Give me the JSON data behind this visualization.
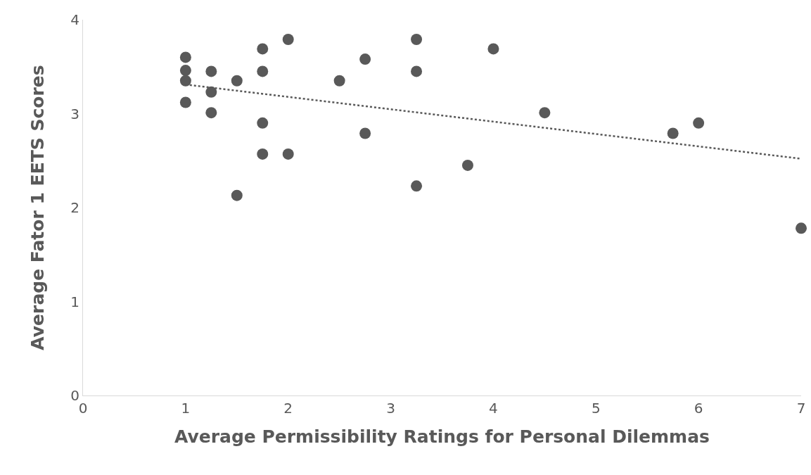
{
  "chart_data": {
    "type": "scatter",
    "xlabel": "Average Permissibility Ratings for Personal Dilemmas",
    "ylabel": "Average Fator 1 EETS Scores",
    "xlim": [
      0,
      7
    ],
    "xticks": [
      0,
      1,
      2,
      3,
      4,
      5,
      6,
      7
    ],
    "ylim": [
      0,
      4
    ],
    "yticks": [
      0,
      1,
      2,
      3,
      4
    ],
    "grid": false,
    "legend": false,
    "marker": "circle",
    "series": [
      {
        "color": "#595959",
        "x": [
          1,
          1,
          1,
          1,
          1.25,
          1.25,
          1.25,
          1.5,
          1.5,
          1.75,
          1.75,
          1.75,
          1.75,
          2,
          2,
          2.5,
          2.75,
          2.75,
          3.25,
          3.25,
          3.25,
          3.75,
          4,
          4.5,
          5.75,
          6,
          7
        ],
        "values": [
          3.6,
          3.46,
          3.35,
          3.12,
          3.45,
          3.23,
          3.01,
          3.35,
          2.13,
          3.69,
          3.45,
          2.9,
          2.57,
          3.79,
          2.57,
          3.35,
          3.58,
          2.79,
          3.79,
          3.45,
          2.23,
          2.45,
          3.69,
          3.01,
          2.79,
          2.9,
          1.78
        ]
      },
      {
        "type": "line",
        "color": "#595959",
        "line_style": "dotted",
        "marker": "none",
        "x": [
          1,
          7
        ],
        "values": [
          3.31,
          2.52
        ]
      }
    ]
  }
}
